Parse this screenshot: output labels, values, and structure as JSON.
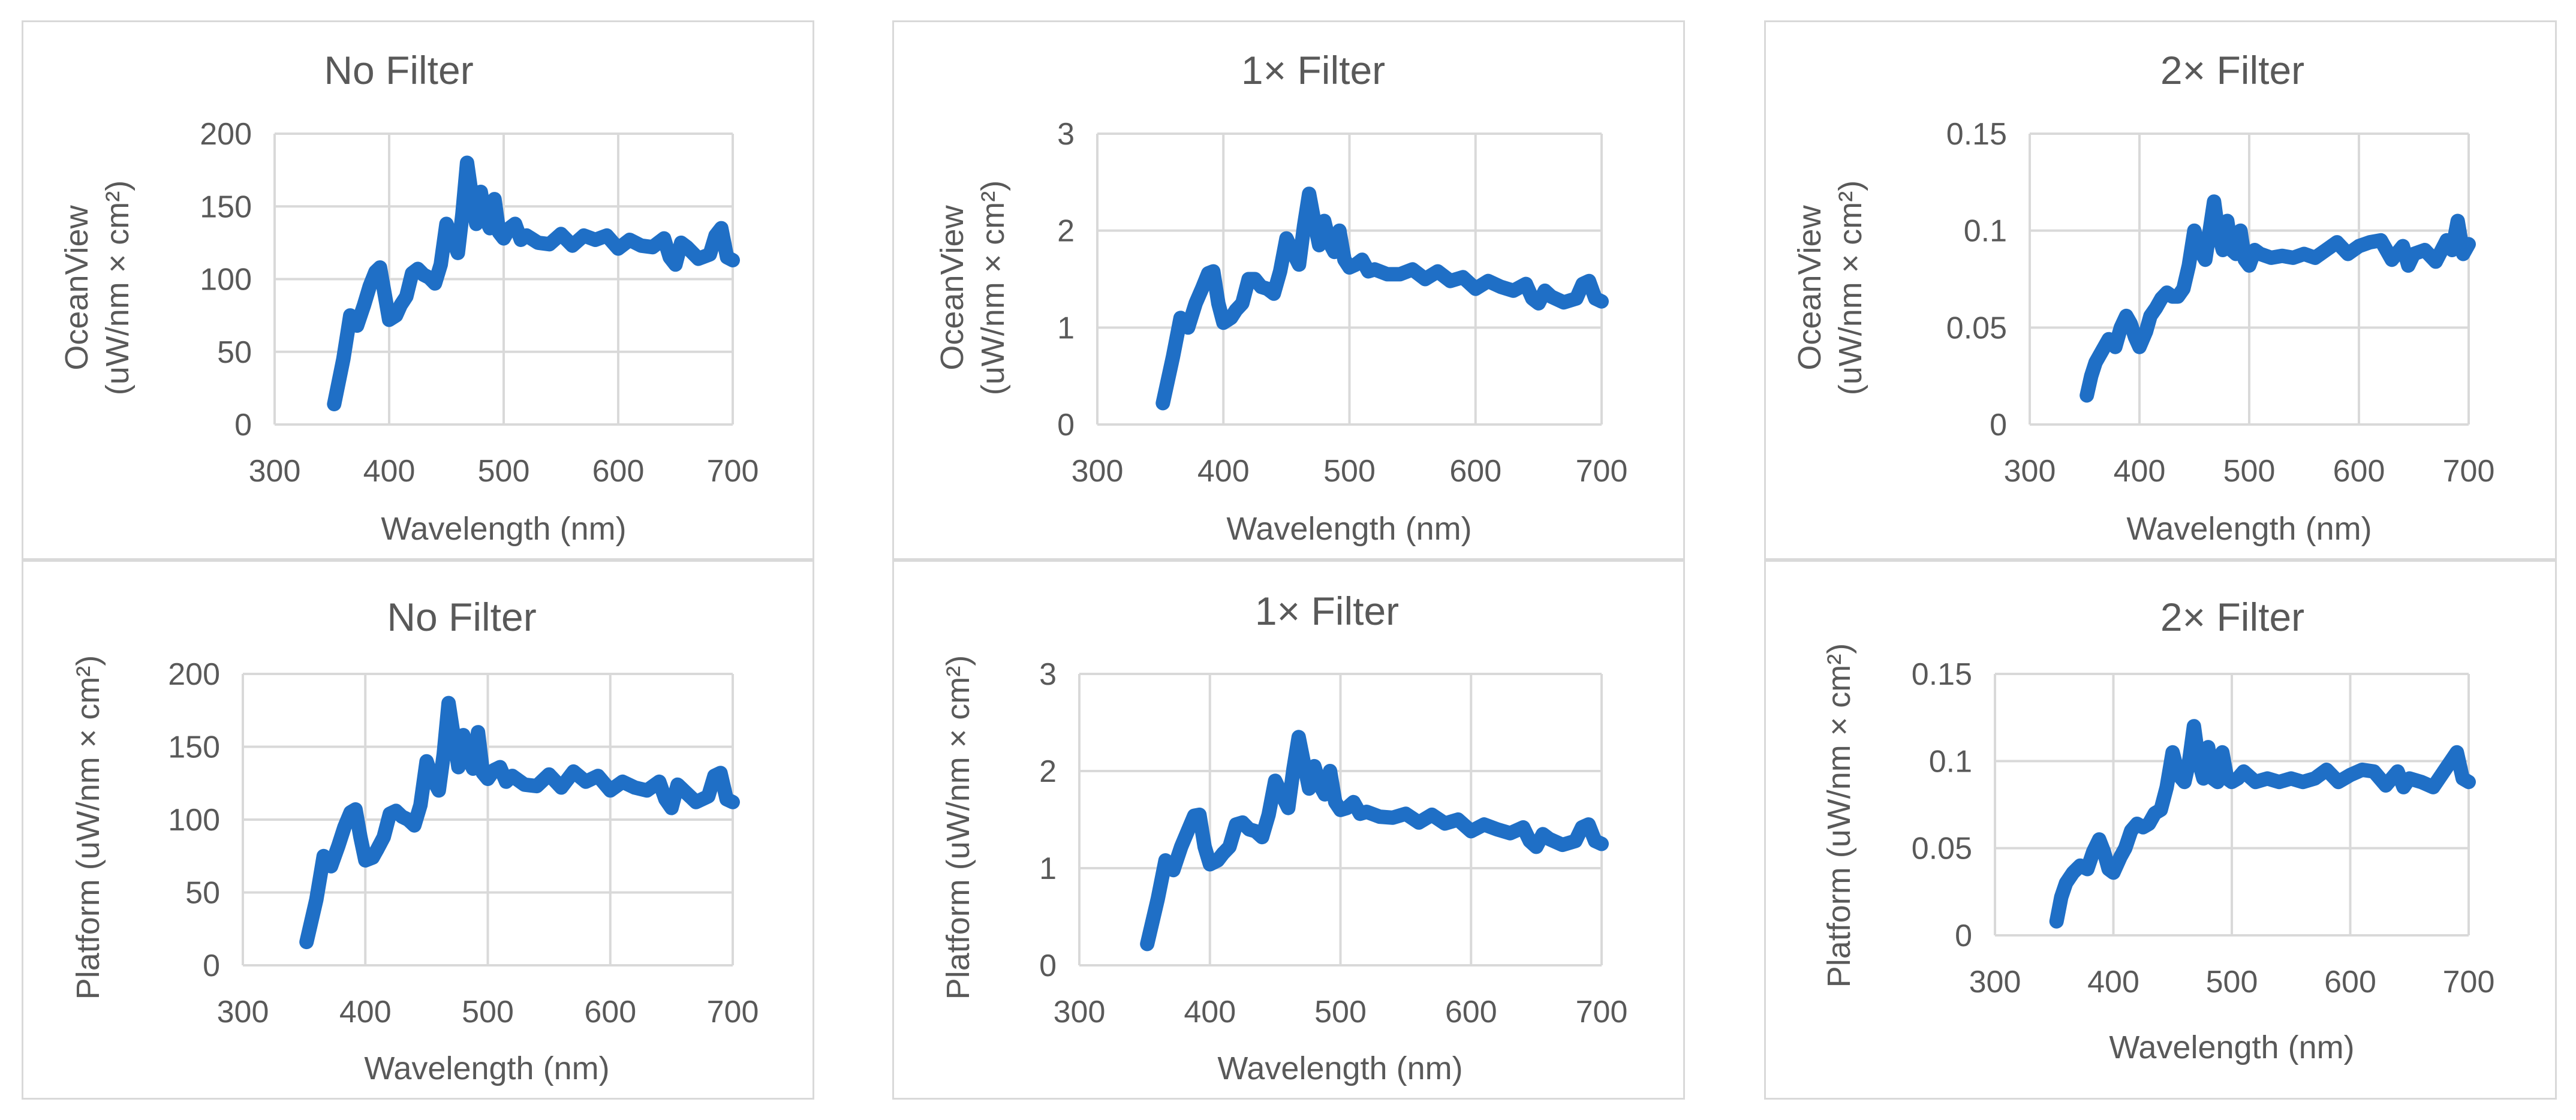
{
  "figure": {
    "line_color": "#1f6fc6",
    "grid_color": "#d9d9d9",
    "text_color": "#595959"
  },
  "chart_data": [
    {
      "type": "line",
      "title": "No Filter",
      "xlabel": "Wavelength (nm)",
      "ylabel_lines": [
        "OceanView",
        "(uW/nm × cm²)"
      ],
      "xlim": [
        300,
        700
      ],
      "ylim": [
        0,
        200
      ],
      "xticks": [
        300,
        400,
        500,
        600,
        700
      ],
      "yticks": [
        0,
        50,
        100,
        150,
        200
      ],
      "xtick_labels": [
        "300",
        "400",
        "500",
        "600",
        "700"
      ],
      "ytick_labels": [
        "0",
        "50",
        "100",
        "150",
        "200"
      ],
      "series": [
        {
          "name": "OceanView, no filter",
          "x": [
            352,
            360,
            366,
            372,
            378,
            383,
            388,
            392,
            396,
            400,
            406,
            410,
            415,
            420,
            425,
            430,
            435,
            440,
            445,
            450,
            455,
            460,
            464,
            468,
            472,
            476,
            480,
            484,
            488,
            492,
            496,
            500,
            505,
            510,
            515,
            520,
            530,
            540,
            550,
            560,
            570,
            580,
            590,
            600,
            610,
            620,
            630,
            640,
            645,
            650,
            655,
            660,
            670,
            680,
            685,
            690,
            695,
            700
          ],
          "y": [
            14,
            45,
            75,
            68,
            82,
            95,
            105,
            108,
            90,
            72,
            75,
            82,
            88,
            104,
            107,
            103,
            101,
            97,
            110,
            138,
            128,
            118,
            145,
            180,
            158,
            138,
            160,
            142,
            135,
            155,
            132,
            128,
            135,
            138,
            127,
            130,
            125,
            124,
            131,
            123,
            130,
            127,
            130,
            121,
            127,
            123,
            122,
            128,
            115,
            110,
            125,
            122,
            114,
            117,
            130,
            135,
            115,
            113
          ]
        }
      ]
    },
    {
      "type": "line",
      "title": "1× Filter",
      "xlabel": "Wavelength (nm)",
      "ylabel_lines": [
        "OceanView",
        "(uW/nm × cm²)"
      ],
      "xlim": [
        300,
        700
      ],
      "ylim": [
        0,
        3
      ],
      "xticks": [
        300,
        400,
        500,
        600,
        700
      ],
      "yticks": [
        0,
        1,
        2,
        3
      ],
      "xtick_labels": [
        "300",
        "400",
        "500",
        "600",
        "700"
      ],
      "ytick_labels": [
        "0",
        "1",
        "2",
        "3"
      ],
      "series": [
        {
          "name": "OceanView, 1× filter",
          "x": [
            352,
            360,
            366,
            372,
            378,
            383,
            388,
            392,
            396,
            400,
            406,
            410,
            415,
            420,
            425,
            430,
            435,
            440,
            445,
            450,
            455,
            460,
            464,
            468,
            472,
            476,
            480,
            484,
            488,
            492,
            496,
            500,
            505,
            510,
            515,
            520,
            530,
            540,
            550,
            560,
            570,
            580,
            590,
            600,
            610,
            620,
            630,
            640,
            645,
            650,
            655,
            660,
            670,
            680,
            685,
            690,
            695,
            700
          ],
          "y": [
            0.22,
            0.7,
            1.1,
            1.0,
            1.25,
            1.4,
            1.56,
            1.58,
            1.25,
            1.05,
            1.1,
            1.18,
            1.25,
            1.5,
            1.5,
            1.42,
            1.4,
            1.35,
            1.58,
            1.92,
            1.78,
            1.65,
            2.05,
            2.38,
            2.1,
            1.85,
            2.1,
            1.88,
            1.78,
            2.0,
            1.7,
            1.62,
            1.65,
            1.7,
            1.58,
            1.6,
            1.55,
            1.55,
            1.6,
            1.5,
            1.58,
            1.48,
            1.52,
            1.4,
            1.48,
            1.42,
            1.38,
            1.45,
            1.3,
            1.25,
            1.38,
            1.32,
            1.26,
            1.3,
            1.45,
            1.48,
            1.3,
            1.27
          ]
        }
      ]
    },
    {
      "type": "line",
      "title": "2× Filter",
      "xlabel": "Wavelength (nm)",
      "ylabel_lines": [
        "OceanView",
        "(uW/nm × cm²)"
      ],
      "xlim": [
        300,
        700
      ],
      "ylim": [
        0,
        0.15
      ],
      "xticks": [
        300,
        400,
        500,
        600,
        700
      ],
      "yticks": [
        0,
        0.05,
        0.1,
        0.15
      ],
      "xtick_labels": [
        "300",
        "400",
        "500",
        "600",
        "700"
      ],
      "ytick_labels": [
        "0",
        "0.05",
        "0.1",
        "0.15"
      ],
      "series": [
        {
          "name": "OceanView, 2× filter",
          "x": [
            352,
            356,
            360,
            366,
            372,
            378,
            383,
            388,
            392,
            396,
            400,
            406,
            410,
            415,
            420,
            425,
            430,
            435,
            440,
            445,
            450,
            455,
            460,
            464,
            468,
            472,
            476,
            480,
            484,
            488,
            492,
            496,
            500,
            505,
            510,
            520,
            530,
            540,
            550,
            560,
            570,
            580,
            590,
            600,
            610,
            620,
            630,
            640,
            645,
            650,
            660,
            670,
            680,
            685,
            690,
            695,
            700
          ],
          "y": [
            0.015,
            0.025,
            0.032,
            0.038,
            0.044,
            0.04,
            0.05,
            0.056,
            0.052,
            0.045,
            0.04,
            0.048,
            0.056,
            0.06,
            0.065,
            0.068,
            0.066,
            0.066,
            0.07,
            0.082,
            0.1,
            0.09,
            0.085,
            0.1,
            0.115,
            0.098,
            0.09,
            0.105,
            0.09,
            0.088,
            0.1,
            0.085,
            0.082,
            0.09,
            0.088,
            0.086,
            0.087,
            0.086,
            0.088,
            0.086,
            0.09,
            0.094,
            0.088,
            0.092,
            0.094,
            0.095,
            0.085,
            0.092,
            0.082,
            0.088,
            0.09,
            0.084,
            0.095,
            0.09,
            0.105,
            0.088,
            0.093
          ]
        }
      ]
    },
    {
      "type": "line",
      "title": "No Filter",
      "xlabel": "Wavelength (nm)",
      "ylabel_lines": [
        "Platform (uW/nm × cm²)"
      ],
      "xlim": [
        300,
        700
      ],
      "ylim": [
        0,
        200
      ],
      "xticks": [
        300,
        400,
        500,
        600,
        700
      ],
      "yticks": [
        0,
        50,
        100,
        150,
        200
      ],
      "xtick_labels": [
        "300",
        "400",
        "500",
        "600",
        "700"
      ],
      "ytick_labels": [
        "0",
        "50",
        "100",
        "150",
        "200"
      ],
      "series": [
        {
          "name": "Platform, no filter",
          "x": [
            352,
            360,
            366,
            372,
            378,
            383,
            388,
            392,
            396,
            400,
            406,
            410,
            415,
            420,
            425,
            430,
            435,
            440,
            445,
            450,
            455,
            460,
            464,
            468,
            472,
            476,
            480,
            484,
            488,
            492,
            496,
            500,
            505,
            510,
            515,
            520,
            530,
            540,
            550,
            560,
            570,
            580,
            590,
            600,
            610,
            620,
            630,
            640,
            645,
            650,
            655,
            660,
            670,
            680,
            685,
            690,
            695,
            700
          ],
          "y": [
            16,
            45,
            75,
            68,
            82,
            95,
            105,
            107,
            88,
            72,
            74,
            80,
            88,
            104,
            106,
            102,
            100,
            96,
            110,
            140,
            128,
            120,
            145,
            180,
            158,
            136,
            158,
            142,
            135,
            160,
            132,
            128,
            134,
            136,
            126,
            130,
            124,
            123,
            131,
            122,
            133,
            126,
            130,
            120,
            126,
            122,
            120,
            126,
            114,
            108,
            124,
            120,
            112,
            116,
            130,
            132,
            114,
            112
          ]
        }
      ]
    },
    {
      "type": "line",
      "title": "1× Filter",
      "xlabel": "Wavelength (nm)",
      "ylabel_lines": [
        "Platform (uW/nm × cm²)"
      ],
      "xlim": [
        300,
        700
      ],
      "ylim": [
        0,
        3
      ],
      "xticks": [
        300,
        400,
        500,
        600,
        700
      ],
      "yticks": [
        0,
        1,
        2,
        3
      ],
      "xtick_labels": [
        "300",
        "400",
        "500",
        "600",
        "700"
      ],
      "ytick_labels": [
        "0",
        "1",
        "2",
        "3"
      ],
      "series": [
        {
          "name": "Platform, 1× filter",
          "x": [
            352,
            360,
            366,
            372,
            378,
            383,
            388,
            392,
            396,
            400,
            406,
            410,
            415,
            420,
            425,
            430,
            435,
            440,
            445,
            450,
            455,
            460,
            464,
            468,
            472,
            476,
            480,
            484,
            488,
            492,
            496,
            500,
            505,
            510,
            515,
            520,
            530,
            540,
            550,
            560,
            570,
            580,
            590,
            600,
            610,
            620,
            630,
            640,
            645,
            650,
            655,
            660,
            670,
            680,
            685,
            690,
            695,
            700
          ],
          "y": [
            0.22,
            0.68,
            1.08,
            0.98,
            1.22,
            1.38,
            1.54,
            1.55,
            1.22,
            1.04,
            1.08,
            1.15,
            1.22,
            1.45,
            1.47,
            1.4,
            1.38,
            1.32,
            1.55,
            1.9,
            1.76,
            1.62,
            2.02,
            2.35,
            2.08,
            1.82,
            2.05,
            1.86,
            1.76,
            2.0,
            1.68,
            1.6,
            1.62,
            1.68,
            1.56,
            1.58,
            1.53,
            1.52,
            1.56,
            1.47,
            1.55,
            1.46,
            1.5,
            1.38,
            1.45,
            1.4,
            1.36,
            1.42,
            1.28,
            1.22,
            1.35,
            1.3,
            1.24,
            1.28,
            1.42,
            1.45,
            1.28,
            1.25
          ]
        }
      ]
    },
    {
      "type": "line",
      "title": "2× Filter",
      "xlabel": "Wavelength (nm)",
      "ylabel_lines": [
        "Platform (uW/nm × cm²)"
      ],
      "xlim": [
        300,
        700
      ],
      "ylim": [
        0,
        0.15
      ],
      "xticks": [
        300,
        400,
        500,
        600,
        700
      ],
      "yticks": [
        0,
        0.05,
        0.1,
        0.15
      ],
      "xtick_labels": [
        "300",
        "400",
        "500",
        "600",
        "700"
      ],
      "ytick_labels": [
        "0",
        "0.05",
        "0.1",
        "0.15"
      ],
      "series": [
        {
          "name": "Platform, 2× filter",
          "x": [
            352,
            356,
            360,
            366,
            372,
            378,
            383,
            388,
            392,
            396,
            400,
            406,
            410,
            415,
            420,
            425,
            430,
            435,
            440,
            445,
            450,
            455,
            460,
            464,
            468,
            472,
            476,
            480,
            484,
            488,
            492,
            496,
            500,
            505,
            510,
            520,
            530,
            540,
            550,
            560,
            570,
            580,
            590,
            600,
            610,
            620,
            630,
            640,
            645,
            650,
            660,
            670,
            680,
            685,
            690,
            695,
            700
          ],
          "y": [
            0.008,
            0.022,
            0.03,
            0.036,
            0.04,
            0.038,
            0.048,
            0.055,
            0.048,
            0.038,
            0.036,
            0.045,
            0.05,
            0.06,
            0.064,
            0.062,
            0.064,
            0.07,
            0.072,
            0.085,
            0.105,
            0.092,
            0.088,
            0.1,
            0.12,
            0.1,
            0.09,
            0.108,
            0.09,
            0.088,
            0.105,
            0.09,
            0.088,
            0.09,
            0.094,
            0.088,
            0.09,
            0.088,
            0.09,
            0.088,
            0.09,
            0.095,
            0.088,
            0.092,
            0.095,
            0.094,
            0.086,
            0.094,
            0.085,
            0.09,
            0.088,
            0.085,
            0.095,
            0.1,
            0.105,
            0.09,
            0.088
          ]
        }
      ]
    }
  ]
}
